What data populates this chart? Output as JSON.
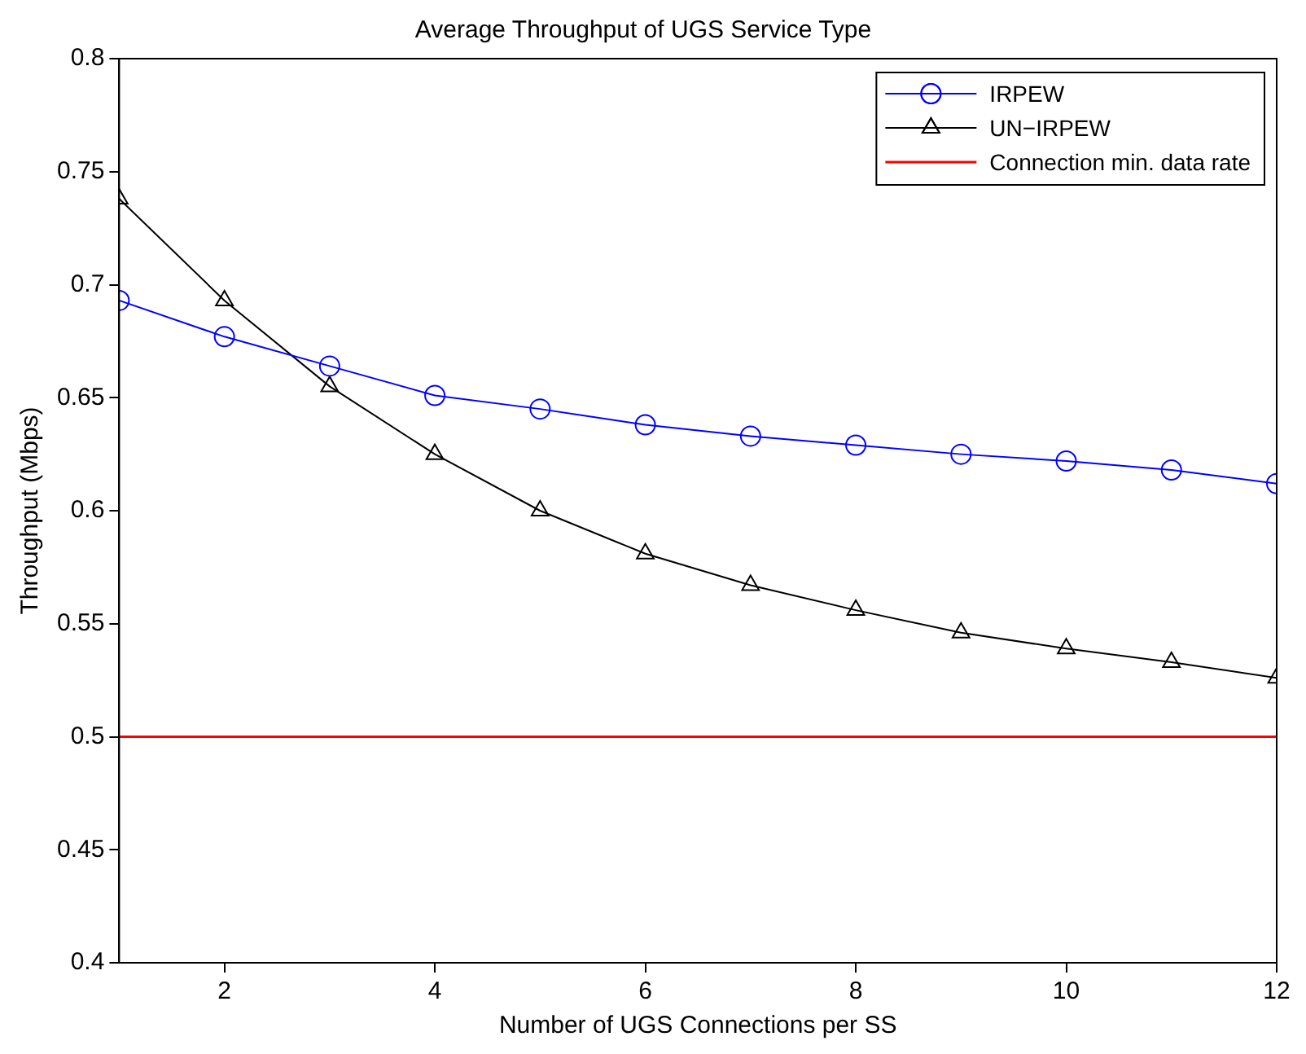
{
  "chart_data": {
    "type": "line",
    "title": "Average Throughput of UGS Service Type",
    "xlabel": "Number of UGS Connections per SS",
    "ylabel": "Throughput (Mbps)",
    "x": [
      1,
      2,
      3,
      4,
      5,
      6,
      7,
      8,
      9,
      10,
      11,
      12
    ],
    "series": [
      {
        "name": "IRPEW",
        "color": "#0000ff",
        "marker": "circle",
        "values": [
          0.693,
          0.677,
          0.664,
          0.651,
          0.645,
          0.638,
          0.633,
          0.629,
          0.625,
          0.622,
          0.618,
          0.612
        ]
      },
      {
        "name": "UN−IRPEW",
        "color": "#000000",
        "marker": "triangle",
        "values": [
          0.738,
          0.693,
          0.655,
          0.625,
          0.6,
          0.581,
          0.567,
          0.556,
          0.546,
          0.539,
          0.533,
          0.526
        ]
      }
    ],
    "ref_lines": [
      {
        "axis": "y",
        "value": 0.5,
        "label": "Connection min. data rate",
        "color": "#ff0000"
      }
    ],
    "xlim": [
      1,
      12
    ],
    "xticks": [
      2,
      4,
      6,
      8,
      10,
      12
    ],
    "ylim": [
      0.4,
      0.8
    ],
    "yticks": [
      0.4,
      0.45,
      0.5,
      0.55,
      0.6,
      0.65,
      0.7,
      0.75,
      0.8
    ],
    "grid": false,
    "legend": "top right"
  }
}
